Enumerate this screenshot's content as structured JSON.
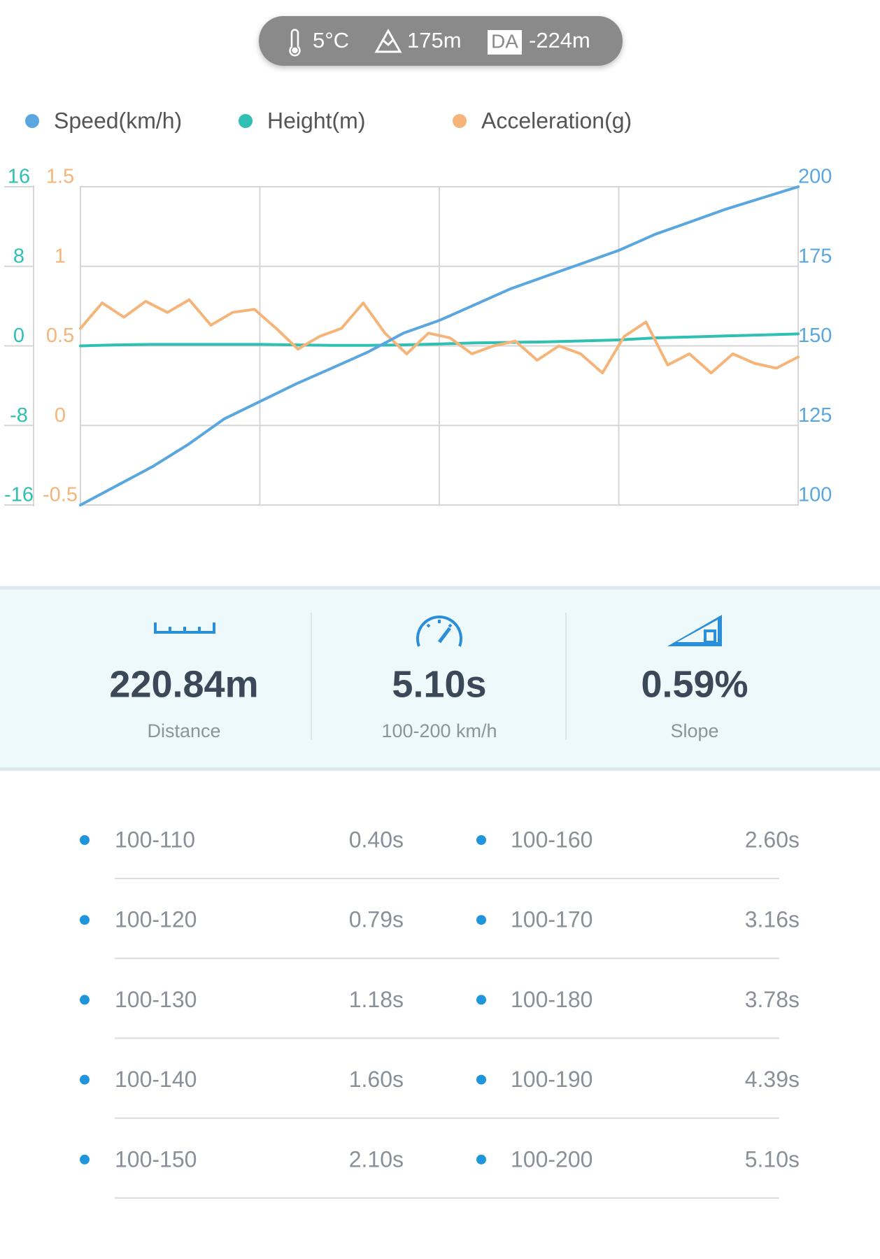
{
  "header": {
    "temperature": "5°C",
    "altitude": "175m",
    "da_label": "DA",
    "density_altitude": "-224m"
  },
  "chart_data": {
    "type": "line",
    "series": [
      {
        "name": "Speed(km/h)",
        "color": "#5aa7e0",
        "axis": "y2",
        "values": [
          100,
          106,
          112,
          119,
          127,
          132.5,
          138,
          143,
          148,
          154,
          158,
          163,
          168,
          172,
          176,
          180,
          185,
          189,
          193,
          196.5,
          200
        ]
      },
      {
        "name": "Height(m)",
        "color": "#2fbfb3",
        "axis": "y",
        "values": [
          0,
          0.1,
          0.15,
          0.15,
          0.15,
          0.15,
          0.1,
          0.05,
          0.05,
          0.1,
          0.2,
          0.3,
          0.35,
          0.4,
          0.5,
          0.6,
          0.8,
          0.9,
          1.0,
          1.1,
          1.2
        ]
      },
      {
        "name": "Acceleration(g)",
        "color": "#f5b57a",
        "axis": "y3",
        "values": [
          0.61,
          0.77,
          0.68,
          0.78,
          0.71,
          0.79,
          0.63,
          0.71,
          0.73,
          0.61,
          0.48,
          0.56,
          0.61,
          0.77,
          0.58,
          0.45,
          0.58,
          0.55,
          0.45,
          0.5,
          0.53,
          0.41,
          0.5,
          0.45,
          0.33,
          0.56,
          0.65,
          0.38,
          0.45,
          0.33,
          0.45,
          0.39,
          0.36,
          0.43
        ]
      }
    ],
    "ylim": [
      -16,
      16
    ],
    "yticks": [
      16,
      8,
      0,
      -8,
      -16
    ],
    "y3lim": [
      -0.5,
      1.5
    ],
    "y3ticks": [
      1.5,
      1,
      0.5,
      0,
      -0.5
    ],
    "y2lim": [
      100,
      200
    ],
    "y2ticks": [
      200,
      175,
      150,
      125,
      100
    ],
    "grid": true
  },
  "stats": [
    {
      "value": "220.84m",
      "label": "Distance"
    },
    {
      "value": "5.10s",
      "label": "100-200 km/h"
    },
    {
      "value": "0.59%",
      "label": "Slope"
    }
  ],
  "table": {
    "rows": [
      [
        "100-110",
        "0.40s",
        "100-160",
        "2.60s"
      ],
      [
        "100-120",
        "0.79s",
        "100-170",
        "3.16s"
      ],
      [
        "100-130",
        "1.18s",
        "100-180",
        "3.78s"
      ],
      [
        "100-140",
        "1.60s",
        "100-190",
        "4.39s"
      ],
      [
        "100-150",
        "2.10s",
        "100-200",
        "5.10s"
      ]
    ]
  }
}
